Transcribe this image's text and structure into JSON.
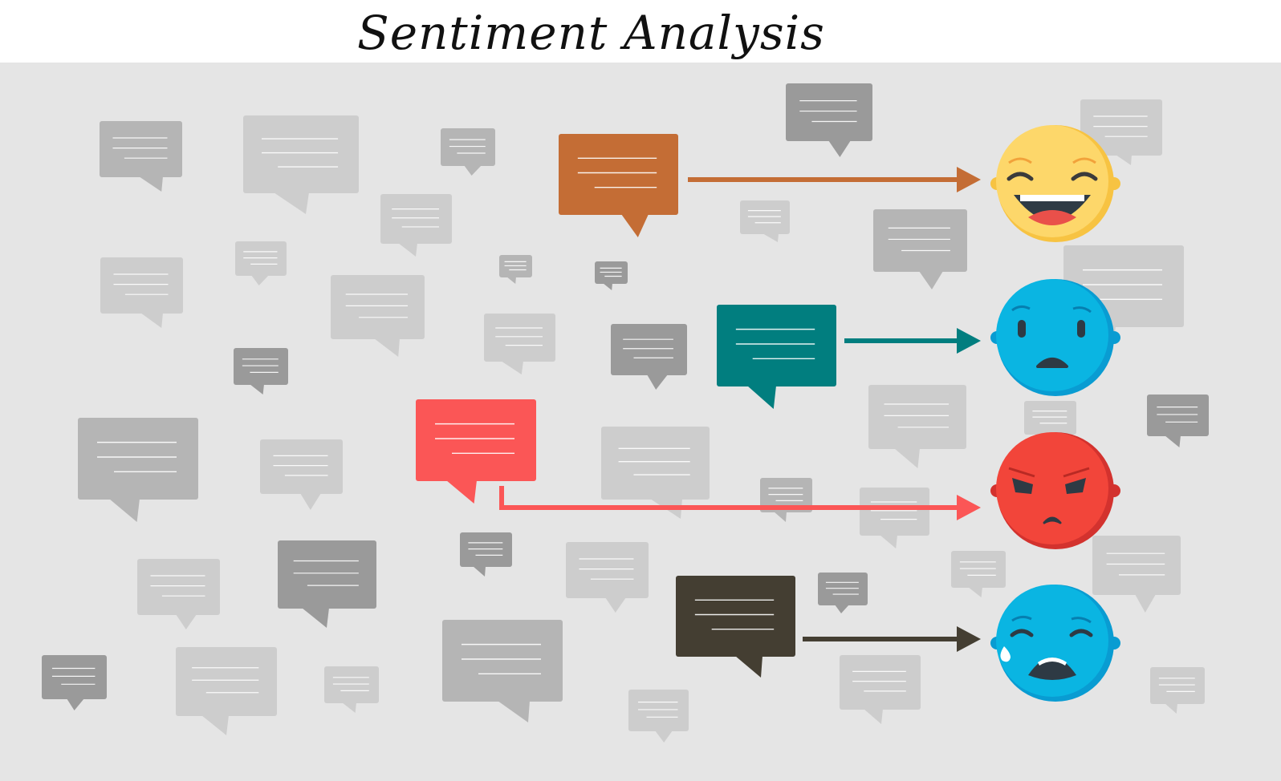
{
  "title": "Sentiment Analysis",
  "colors": {
    "background": "#e5e5e5",
    "positive": "#c46d35",
    "negative": "#017e7f",
    "angry": "#fb5656",
    "crying": "#443e32",
    "happy_face": "#fdd76a",
    "sad_face": "#0ab5e2",
    "angry_face": "#f2453a"
  },
  "diagram": {
    "flows": [
      {
        "id": "happy",
        "bubble_color": "#c46d35",
        "arrow_color": "#c46d35",
        "face": "grinning-face-icon"
      },
      {
        "id": "sad",
        "bubble_color": "#017e7f",
        "arrow_color": "#017e7f",
        "face": "sad-face-icon"
      },
      {
        "id": "angry",
        "bubble_color": "#fb5656",
        "arrow_color": "#fb5656",
        "face": "angry-face-icon"
      },
      {
        "id": "crying",
        "bubble_color": "#443e32",
        "arrow_color": "#443e32",
        "face": "crying-face-icon"
      }
    ]
  }
}
